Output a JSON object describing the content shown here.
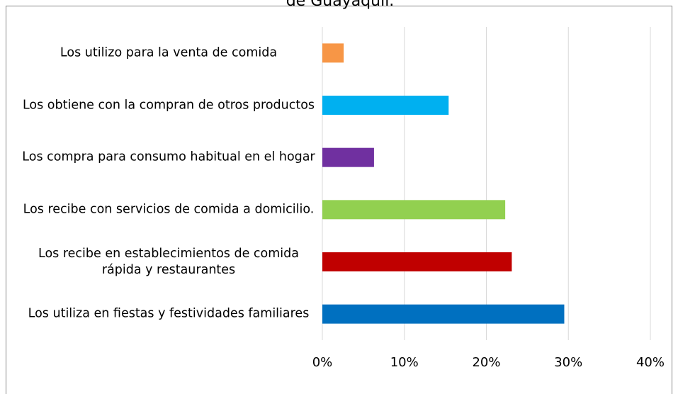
{
  "chart_data": {
    "type": "bar",
    "orientation": "horizontal",
    "title": "de Guayaquil.",
    "categories": [
      "Los utilizo para la venta de comida",
      "Los obtiene con la compran de otros productos",
      "Los compra para consumo habitual en el hogar",
      "Los recibe con servicios de comida a domicilio.",
      "Los recibe en establecimientos de comida rápida y restaurantes",
      "Los utiliza en fiestas y festividades familiares"
    ],
    "values": [
      2.6,
      15.4,
      6.3,
      22.3,
      23.1,
      29.5
    ],
    "colors": [
      "#f79646",
      "#00b0f0",
      "#7030a0",
      "#92d050",
      "#c00000",
      "#0070c0"
    ],
    "xlim": [
      0,
      40
    ],
    "xticks": [
      {
        "value": 0,
        "label": "0%"
      },
      {
        "value": 10,
        "label": "10%"
      },
      {
        "value": 20,
        "label": "20%"
      },
      {
        "value": 30,
        "label": "30%"
      },
      {
        "value": 40,
        "label": "40%"
      }
    ],
    "grid": true
  }
}
